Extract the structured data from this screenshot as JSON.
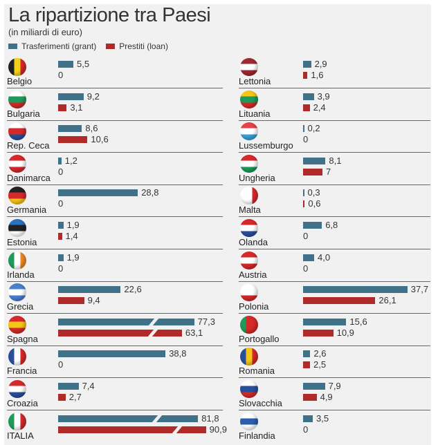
{
  "chart_data": {
    "type": "bar",
    "title": "La ripartizione tra Paesi",
    "subtitle": "(in miliardi di euro)",
    "legend": [
      {
        "name": "Trasferimenti (grant)",
        "color": "#3f7289"
      },
      {
        "name": "Prestiti (loan)",
        "color": "#b02a2a"
      }
    ],
    "left": [
      {
        "country": "Belgio",
        "grant": 5.5,
        "loan": 0,
        "grant_label": "5,5",
        "loan_label": "0",
        "flag": [
          "v",
          "#222",
          "#f5d21a",
          "#d62a2a"
        ]
      },
      {
        "country": "Bulgaria",
        "grant": 9.2,
        "loan": 3.1,
        "grant_label": "9,2",
        "loan_label": "3,1",
        "flag": [
          "h",
          "#fff",
          "#1e9a5a",
          "#d62a2a"
        ]
      },
      {
        "country": "Rep. Ceca",
        "grant": 8.6,
        "loan": 10.6,
        "grant_label": "8,6",
        "loan_label": "10,6",
        "flag": [
          "h",
          "#fff",
          "#d62a2a",
          "#2a4f9a"
        ]
      },
      {
        "country": "Danimarca",
        "grant": 1.2,
        "loan": 0,
        "grant_label": "1,2",
        "loan_label": "0",
        "flag": [
          "h",
          "#d62a2a",
          "#fff",
          "#d62a2a"
        ]
      },
      {
        "country": "Germania",
        "grant": 28.8,
        "loan": 0,
        "grant_label": "28,8",
        "loan_label": "0",
        "flag": [
          "h",
          "#222",
          "#d62a2a",
          "#f5c518"
        ]
      },
      {
        "country": "Estonia",
        "grant": 1.9,
        "loan": 1.4,
        "grant_label": "1,9",
        "loan_label": "1,4",
        "flag": [
          "h",
          "#2b72c2",
          "#222",
          "#fff"
        ]
      },
      {
        "country": "Irlanda",
        "grant": 1.9,
        "loan": 0,
        "grant_label": "1,9",
        "loan_label": "0",
        "flag": [
          "v",
          "#1e9a5a",
          "#fff",
          "#f08a24"
        ]
      },
      {
        "country": "Grecia",
        "grant": 22.6,
        "loan": 9.4,
        "grant_label": "22,6",
        "loan_label": "9,4",
        "flag": [
          "h",
          "#4a7fcf",
          "#fff",
          "#4a7fcf"
        ]
      },
      {
        "country": "Spagna",
        "grant": 77.3,
        "loan": 63.1,
        "grant_label": "77,3",
        "loan_label": "63,1",
        "flag": [
          "h",
          "#d62a2a",
          "#f5c518",
          "#d62a2a"
        ]
      },
      {
        "country": "Francia",
        "grant": 38.8,
        "loan": 0,
        "grant_label": "38,8",
        "loan_label": "0",
        "flag": [
          "v",
          "#2a4f9a",
          "#fff",
          "#d62a2a"
        ]
      },
      {
        "country": "Croazia",
        "grant": 7.4,
        "loan": 2.7,
        "grant_label": "7,4",
        "loan_label": "2,7",
        "flag": [
          "h",
          "#d62a2a",
          "#fff",
          "#2a4f9a"
        ]
      },
      {
        "country": "ITALIA",
        "grant": 81.8,
        "loan": 90.9,
        "grant_label": "81,8",
        "loan_label": "90,9",
        "flag": [
          "v",
          "#1e9a5a",
          "#fff",
          "#d62a2a"
        ]
      }
    ],
    "right": [
      {
        "country": "Lettonia",
        "grant": 2.9,
        "loan": 1.6,
        "grant_label": "2,9",
        "loan_label": "1,6",
        "flag": [
          "h",
          "#9e2a32",
          "#fff",
          "#9e2a32"
        ]
      },
      {
        "country": "Lituania",
        "grant": 3.9,
        "loan": 2.4,
        "grant_label": "3,9",
        "loan_label": "2,4",
        "flag": [
          "h",
          "#f5c518",
          "#1e9a5a",
          "#d62a2a"
        ]
      },
      {
        "country": "Lussemburgo",
        "grant": 0.2,
        "loan": 0,
        "grant_label": "0,2",
        "loan_label": "0",
        "flag": [
          "h",
          "#e8424a",
          "#fff",
          "#3aa0dc"
        ]
      },
      {
        "country": "Ungheria",
        "grant": 8.1,
        "loan": 7,
        "grant_label": "8,1",
        "loan_label": "7",
        "flag": [
          "h",
          "#d62a2a",
          "#fff",
          "#1e9a5a"
        ]
      },
      {
        "country": "Malta",
        "grant": 0.3,
        "loan": 0.6,
        "grant_label": "0,3",
        "loan_label": "0,6",
        "flag": [
          "v",
          "#fff",
          "#fff",
          "#d62a2a"
        ]
      },
      {
        "country": "Olanda",
        "grant": 6.8,
        "loan": 0,
        "grant_label": "6,8",
        "loan_label": "0",
        "flag": [
          "h",
          "#d62a2a",
          "#fff",
          "#2a4f9a"
        ]
      },
      {
        "country": "Austria",
        "grant": 4.0,
        "loan": 0,
        "grant_label": "4,0",
        "loan_label": "0",
        "flag": [
          "h",
          "#d62a2a",
          "#fff",
          "#d62a2a"
        ]
      },
      {
        "country": "Polonia",
        "grant": 37.7,
        "loan": 26.1,
        "grant_label": "37,7",
        "loan_label": "26,1",
        "flag": [
          "h",
          "#fff",
          "#fff",
          "#d62a2a"
        ]
      },
      {
        "country": "Portogallo",
        "grant": 15.6,
        "loan": 10.9,
        "grant_label": "15,6",
        "loan_label": "10,9",
        "flag": [
          "v",
          "#1e9a5a",
          "#d62a2a",
          "#d62a2a"
        ]
      },
      {
        "country": "Romania",
        "grant": 2.6,
        "loan": 2.5,
        "grant_label": "2,6",
        "loan_label": "2,5",
        "flag": [
          "v",
          "#2a4f9a",
          "#f5c518",
          "#d62a2a"
        ]
      },
      {
        "country": "Slovacchia",
        "grant": 7.9,
        "loan": 4.9,
        "grant_label": "7,9",
        "loan_label": "4,9",
        "flag": [
          "h",
          "#fff",
          "#2a4f9a",
          "#d62a2a"
        ]
      },
      {
        "country": "Finlandia",
        "grant": 3.5,
        "loan": 0,
        "grant_label": "3,5",
        "loan_label": "0",
        "flag": [
          "h",
          "#fff",
          "#2a5fb0",
          "#fff"
        ]
      }
    ]
  }
}
